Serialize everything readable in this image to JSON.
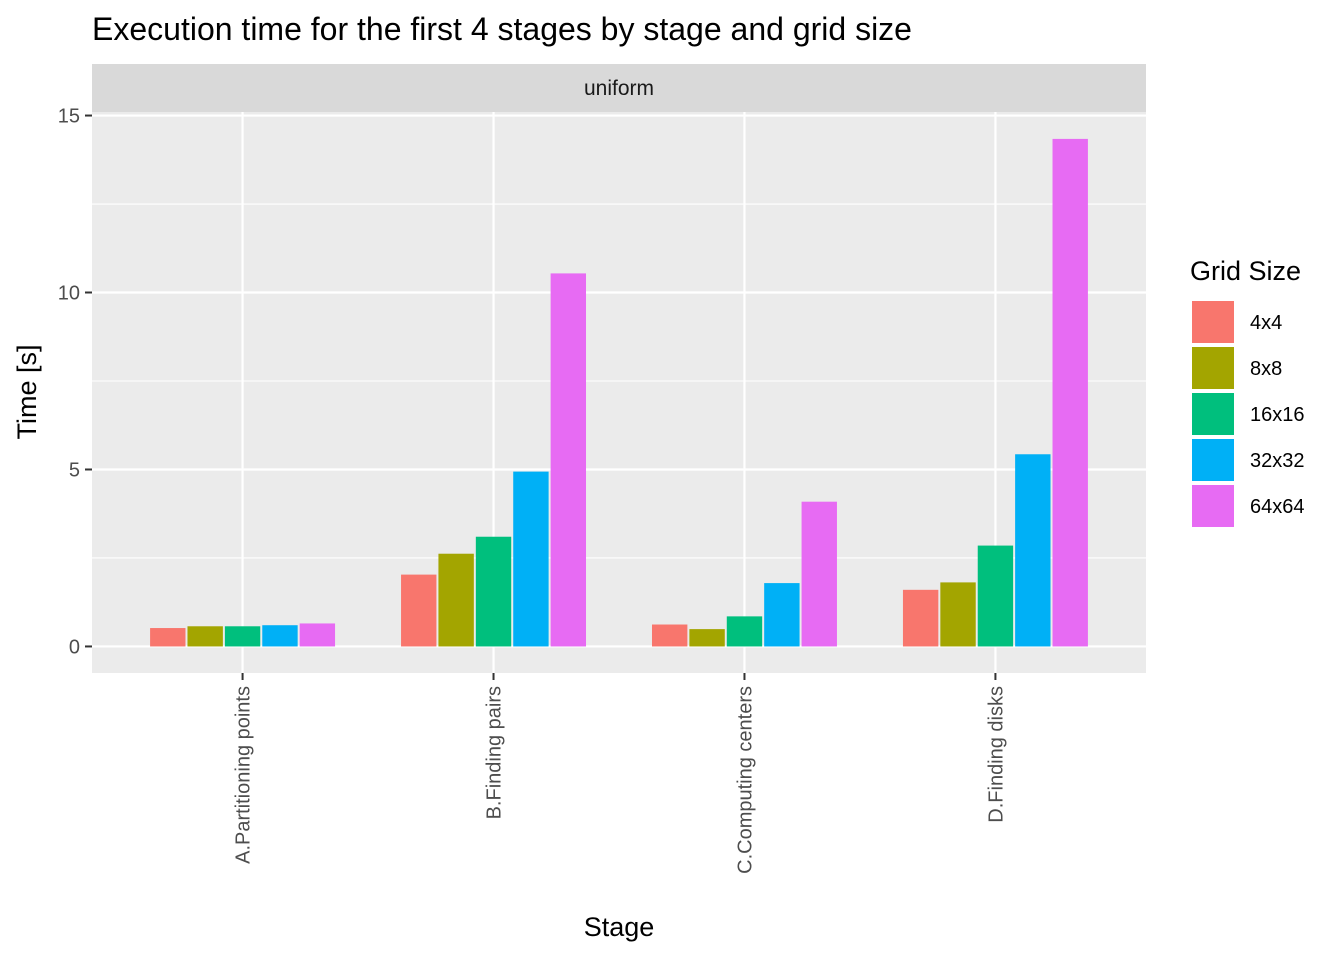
{
  "chart_data": {
    "type": "bar",
    "title": "Execution time for the first 4 stages by stage and grid size",
    "facet_label": "uniform",
    "xlabel": "Stage",
    "ylabel": "Time [s]",
    "categories": [
      "A.Partitioning points",
      "B.Finding pairs",
      "C.Computing centers",
      "D.Finding disks"
    ],
    "series": [
      {
        "name": "4x4",
        "color": "#F8766D",
        "values": [
          0.52,
          2.03,
          0.62,
          1.6
        ]
      },
      {
        "name": "8x8",
        "color": "#A3A500",
        "values": [
          0.57,
          2.62,
          0.49,
          1.81
        ]
      },
      {
        "name": "16x16",
        "color": "#00BF7D",
        "values": [
          0.57,
          3.1,
          0.85,
          2.85
        ]
      },
      {
        "name": "32x32",
        "color": "#00B0F6",
        "values": [
          0.6,
          4.94,
          1.79,
          5.43
        ]
      },
      {
        "name": "64x64",
        "color": "#E76BF3",
        "values": [
          0.65,
          10.54,
          4.09,
          14.34
        ]
      }
    ],
    "ylim": [
      -0.75,
      15.1
    ],
    "y_ticks": [
      0,
      5,
      10,
      15
    ],
    "y_tick_labels": [
      "0",
      "5",
      "10",
      "15"
    ],
    "legend_title": "Grid Size",
    "legend_position": "right",
    "grid": true,
    "panel_background": "#EBEBEB",
    "grid_color": "#FFFFFF",
    "strip_background": "#D9D9D9"
  }
}
